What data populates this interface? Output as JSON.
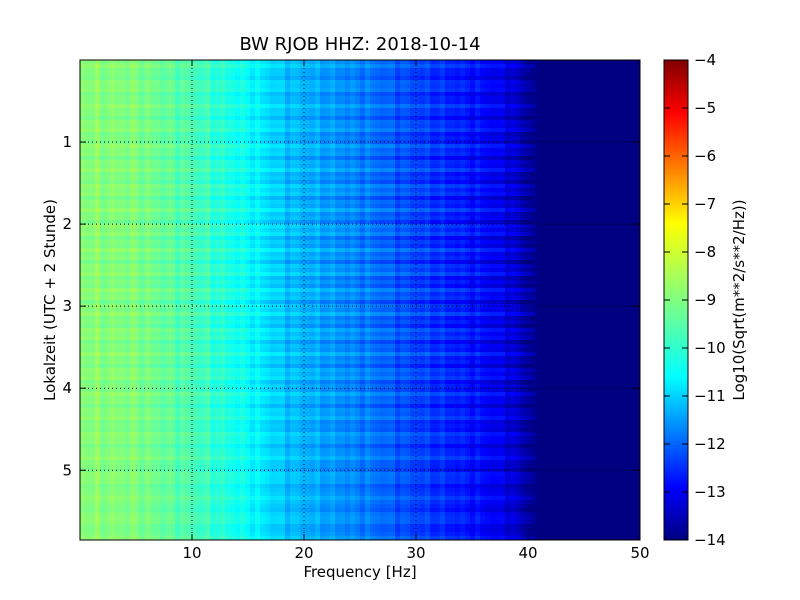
{
  "chart_data": {
    "type": "heatmap",
    "title": "BW RJOB HHZ: 2018-10-14",
    "xlabel": "Frequency [Hz]",
    "ylabel": "Lokalzeit (UTC + 2 Stunde)",
    "xlim": [
      0,
      50
    ],
    "ylim": [
      0,
      5.85
    ],
    "y_inverted": true,
    "x_ticks": [
      10,
      20,
      30,
      40,
      50
    ],
    "x_tick_labels": [
      "10",
      "20",
      "30",
      "40",
      "50"
    ],
    "y_ticks": [
      1,
      2,
      3,
      4,
      5
    ],
    "y_tick_labels": [
      "1",
      "2",
      "3",
      "4",
      "5"
    ],
    "grid": true,
    "colormap": "jet",
    "colorbar": {
      "label": "Log10(Sqrt(m**2/s**2/Hz))",
      "range": [
        -14,
        -4
      ],
      "ticks": [
        -4,
        -5,
        -6,
        -7,
        -8,
        -9,
        -10,
        -11,
        -12,
        -13,
        -14
      ],
      "tick_labels": [
        "−4",
        "−5",
        "−6",
        "−7",
        "−8",
        "−9",
        "−10",
        "−11",
        "−12",
        "−13",
        "−14"
      ]
    },
    "spectral_profile": {
      "frequency_hz": [
        0,
        5,
        10,
        15,
        18,
        22,
        26,
        30,
        35,
        38,
        40,
        41,
        50
      ],
      "log10_amplitude": [
        -8.9,
        -9.0,
        -9.5,
        -10.2,
        -10.8,
        -11.2,
        -11.6,
        -12.1,
        -12.6,
        -13.0,
        -13.6,
        -14.0,
        -14.0
      ]
    }
  }
}
